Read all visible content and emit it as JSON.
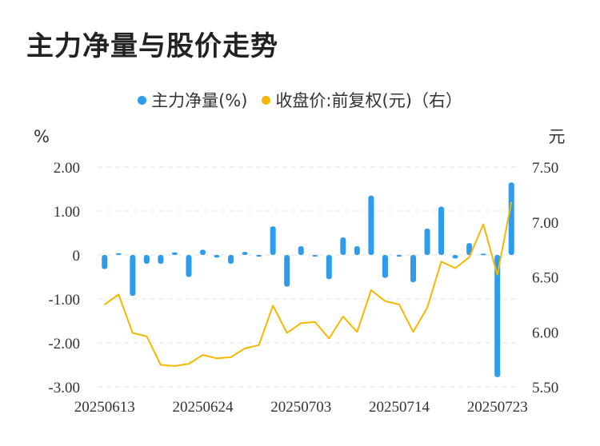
{
  "title": "主力净量与股价走势",
  "chart_data": {
    "type": "bar+line",
    "legend": [
      {
        "label": "主力净量(%)",
        "color": "#2d9cec"
      },
      {
        "label": "收盘价:前复权(元)（右）",
        "color": "#f5b800"
      }
    ],
    "left_unit": "%",
    "right_unit": "元",
    "left_ticks": [
      "2.00",
      "1.00",
      "0",
      "-1.00",
      "-2.00",
      "-3.00"
    ],
    "right_ticks": [
      "7.50",
      "7.00",
      "6.50",
      "6.00",
      "5.50"
    ],
    "ylim_left": [
      -3,
      2
    ],
    "ylim_right": [
      5.5,
      7.5
    ],
    "x_tick_labels": [
      {
        "index": 0,
        "label": "20250613"
      },
      {
        "index": 7,
        "label": "20250624"
      },
      {
        "index": 14,
        "label": "20250703"
      },
      {
        "index": 21,
        "label": "20250714"
      },
      {
        "index": 28,
        "label": "20250723"
      }
    ],
    "series": [
      {
        "name": "主力净量(%)",
        "type": "bar",
        "color": "#2d9cec",
        "values": [
          -0.32,
          0.04,
          -0.93,
          -0.2,
          -0.2,
          0.06,
          -0.5,
          0.12,
          -0.06,
          -0.2,
          0.07,
          -0.02,
          0.65,
          -0.72,
          0.2,
          -0.02,
          -0.55,
          0.4,
          0.2,
          1.35,
          -0.52,
          -0.02,
          -0.62,
          0.6,
          1.1,
          -0.08,
          0.27,
          0.03,
          -2.78,
          1.65
        ]
      },
      {
        "name": "收盘价:前复权(元)（右）",
        "type": "line",
        "color": "#f5b800",
        "values": [
          6.25,
          6.34,
          5.99,
          5.96,
          5.7,
          5.69,
          5.71,
          5.79,
          5.76,
          5.77,
          5.85,
          5.88,
          6.24,
          5.99,
          6.08,
          6.09,
          5.94,
          6.14,
          6.0,
          6.38,
          6.28,
          6.25,
          6.0,
          6.22,
          6.64,
          6.58,
          6.68,
          6.98,
          6.52,
          7.18
        ]
      }
    ]
  }
}
